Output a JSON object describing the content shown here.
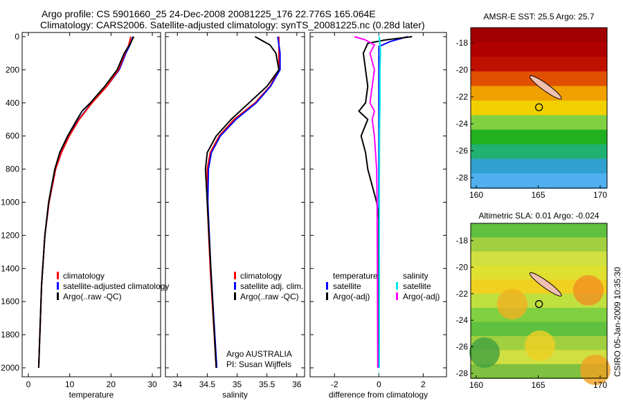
{
  "title_line1": "Argo profile: CS 5901660_25 24-Dec-2008 20081225_176 22.776S 165.064E",
  "title_line2": "Climatology: CARS2006. Satellite-adjusted climatology: synTS_20081225.nc (0.28d later)",
  "side_label": "CSIRO 05-Jan-2009 10:35:30",
  "credit": [
    "Argo AUSTRALIA",
    "PI: Susan Wijffels"
  ],
  "chart_data": [
    {
      "type": "line",
      "xlabel": "temperature",
      "xlim": [
        -1.5,
        32
      ],
      "ylim": [
        2000,
        0
      ],
      "xticks": [
        0,
        10,
        20,
        30
      ],
      "yticks": [
        0,
        200,
        400,
        600,
        800,
        1000,
        1200,
        1400,
        1600,
        1800,
        2000
      ],
      "legend": [
        "climatology",
        "satellite-adjusted climatology",
        "Argo(..raw -QC)"
      ],
      "series": [
        {
          "name": "satellite-adjusted climatology",
          "color": "#0000ff",
          "depth": [
            0,
            50,
            100,
            200,
            300,
            400,
            500,
            600,
            700,
            800,
            1000,
            1200,
            1500,
            2000
          ],
          "values": [
            25.3,
            24.6,
            23.6,
            22,
            19,
            15.3,
            12.2,
            9.8,
            8,
            6.6,
            5,
            4,
            3.2,
            2.5
          ]
        },
        {
          "name": "climatology",
          "color": "#ff0000",
          "depth": [
            0,
            50,
            100,
            200,
            300,
            400,
            500,
            600,
            700,
            800,
            1000,
            1200,
            1500,
            2000
          ],
          "values": [
            24.8,
            24.3,
            23.4,
            21.8,
            19,
            15.4,
            12.3,
            9.9,
            8,
            6.6,
            5,
            4,
            3.2,
            2.5
          ]
        },
        {
          "name": "Argo(..raw -QC)",
          "color": "#000000",
          "depth": [
            0,
            50,
            100,
            200,
            300,
            400,
            450,
            500,
            600,
            700,
            800,
            1000,
            1200,
            1500,
            2000
          ],
          "values": [
            25.5,
            24.5,
            23.2,
            21.5,
            18.5,
            15,
            13,
            11.8,
            9.5,
            7.6,
            6.4,
            4.9,
            4,
            3.2,
            2.5
          ]
        }
      ]
    },
    {
      "type": "line",
      "xlabel": "salinity",
      "xlim": [
        33.8,
        36.13
      ],
      "ylim": [
        2000,
        0
      ],
      "xticks": [
        34,
        34.5,
        35,
        35.5,
        36
      ],
      "legend": [
        "climatology",
        "satellite adj. clim.",
        "Argo(..raw -QC)"
      ],
      "series": [
        {
          "name": "climatology",
          "color": "#ff0000",
          "depth": [
            0,
            100,
            200,
            300,
            400,
            500,
            600,
            700,
            800,
            1000,
            1400,
            2000
          ],
          "values": [
            35.7,
            35.7,
            35.7,
            35.55,
            35.3,
            34.95,
            34.7,
            34.55,
            34.5,
            34.5,
            34.55,
            34.65
          ]
        },
        {
          "name": "satellite adj. clim.",
          "color": "#0000ff",
          "depth": [
            0,
            100,
            200,
            300,
            400,
            500,
            600,
            700,
            800,
            1000,
            1400,
            2000
          ],
          "values": [
            35.68,
            35.72,
            35.72,
            35.56,
            35.32,
            34.98,
            34.72,
            34.57,
            34.52,
            34.51,
            34.56,
            34.66
          ]
        },
        {
          "name": "Argo(..raw -QC)",
          "color": "#000000",
          "depth": [
            0,
            50,
            100,
            200,
            300,
            400,
            500,
            600,
            700,
            800,
            1000,
            1400,
            2000
          ],
          "values": [
            35.3,
            35.55,
            35.65,
            35.7,
            35.5,
            35.2,
            34.9,
            34.65,
            34.5,
            34.47,
            34.5,
            34.56,
            34.65
          ]
        }
      ]
    },
    {
      "type": "line",
      "xlabel": "difference from climatology",
      "xlim": [
        -3.1,
        3.05
      ],
      "ylim": [
        2000,
        0
      ],
      "xticks": [
        -2,
        0,
        2
      ],
      "legend_t": [
        "temperature",
        "satellite",
        "Argo(-adj)"
      ],
      "legend_s": [
        "salinity",
        "satellite",
        "Argo(-adj)"
      ],
      "series": [
        {
          "name": "temperature satellite",
          "color": "#0000ff",
          "depth": [
            0,
            30,
            60,
            100,
            2000
          ],
          "values": [
            1.3,
            0.5,
            0,
            0,
            0
          ]
        },
        {
          "name": "temperature Argo(-adj)",
          "color": "#000000",
          "depth": [
            0,
            20,
            40,
            100,
            200,
            300,
            400,
            450,
            500,
            600,
            700,
            800,
            900,
            1000,
            1100,
            2000
          ],
          "values": [
            1.5,
            0.3,
            -0.5,
            -0.7,
            -0.6,
            -0.5,
            -0.6,
            -0.9,
            -0.5,
            -0.8,
            -0.6,
            -0.5,
            -0.3,
            -0.1,
            0,
            0
          ]
        },
        {
          "name": "salinity satellite",
          "color": "#00e5ee",
          "depth": [
            0,
            100,
            200,
            400,
            600,
            1000,
            2000
          ],
          "values": [
            0.02,
            0.08,
            0.05,
            0.05,
            0.03,
            0.02,
            0.02
          ]
        },
        {
          "name": "salinity Argo(-adj)",
          "color": "#ff00ff",
          "depth": [
            0,
            20,
            50,
            100,
            200,
            300,
            400,
            450,
            500,
            600,
            800,
            1000,
            2000
          ],
          "values": [
            -1.1,
            -0.6,
            -0.2,
            -0.4,
            -0.2,
            -0.3,
            -0.4,
            -0.2,
            -0.3,
            -0.2,
            -0.1,
            -0.08,
            -0.05
          ]
        }
      ]
    },
    {
      "type": "heatmap",
      "title": "AMSR-E SST: 25.5 Argo: 25.7",
      "xticks": [
        160,
        165,
        170
      ],
      "yticks": [
        -18,
        -20,
        -22,
        -24,
        -26,
        -28
      ],
      "float_position": [
        165.064,
        -22.776
      ]
    },
    {
      "type": "heatmap",
      "title": "Altimetric SLA: 0.01 Argo: -0.024",
      "xticks": [
        160,
        165,
        170
      ],
      "yticks": [
        -18,
        -20,
        -22,
        -24,
        -26,
        -28
      ],
      "float_position": [
        165.064,
        -22.776
      ]
    }
  ]
}
